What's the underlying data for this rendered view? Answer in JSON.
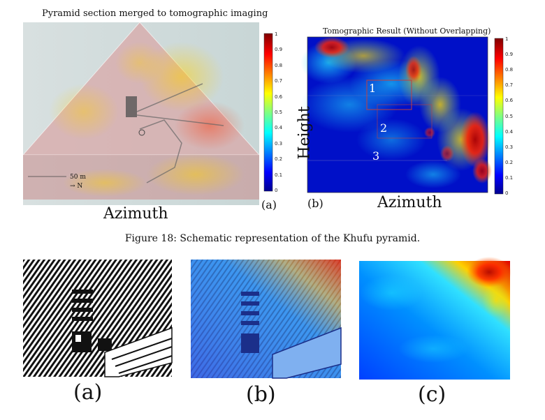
{
  "top_left": {
    "title": "Pyramid section merged to tomographic imaging",
    "scale_label": "50 m",
    "north_label": "→ N",
    "xlabel": "Azimuth",
    "label": "(a)",
    "colorbar_ticks": [
      "1",
      "0.9",
      "0.8",
      "0.7",
      "0.6",
      "0.5",
      "0.4",
      "0.3",
      "0.2",
      "0.1",
      "0"
    ]
  },
  "top_right": {
    "title": "Tomographic Result (Without Overlapping)",
    "ylabel": "Height",
    "xlabel": "Azimuth",
    "label": "(b)",
    "regions": [
      "1",
      "2",
      "3"
    ],
    "colorbar_ticks": [
      "1",
      "0.9",
      "0.8",
      "0.7",
      "0.6",
      "0.5",
      "0.4",
      "0.3",
      "0.2",
      "0.1",
      "0"
    ]
  },
  "figure_caption": "Figure 18: Schematic representation of the Khufu pyramid.",
  "bottom": {
    "labels": [
      "(a)",
      "(b)",
      "(c)"
    ]
  },
  "colors": {
    "jet_dark_blue": "#00008f",
    "jet_blue": "#0050ff",
    "jet_cyan": "#00d0ff",
    "jet_yellow": "#ffe000",
    "jet_red": "#e00000",
    "jet_dark_red": "#800000"
  }
}
